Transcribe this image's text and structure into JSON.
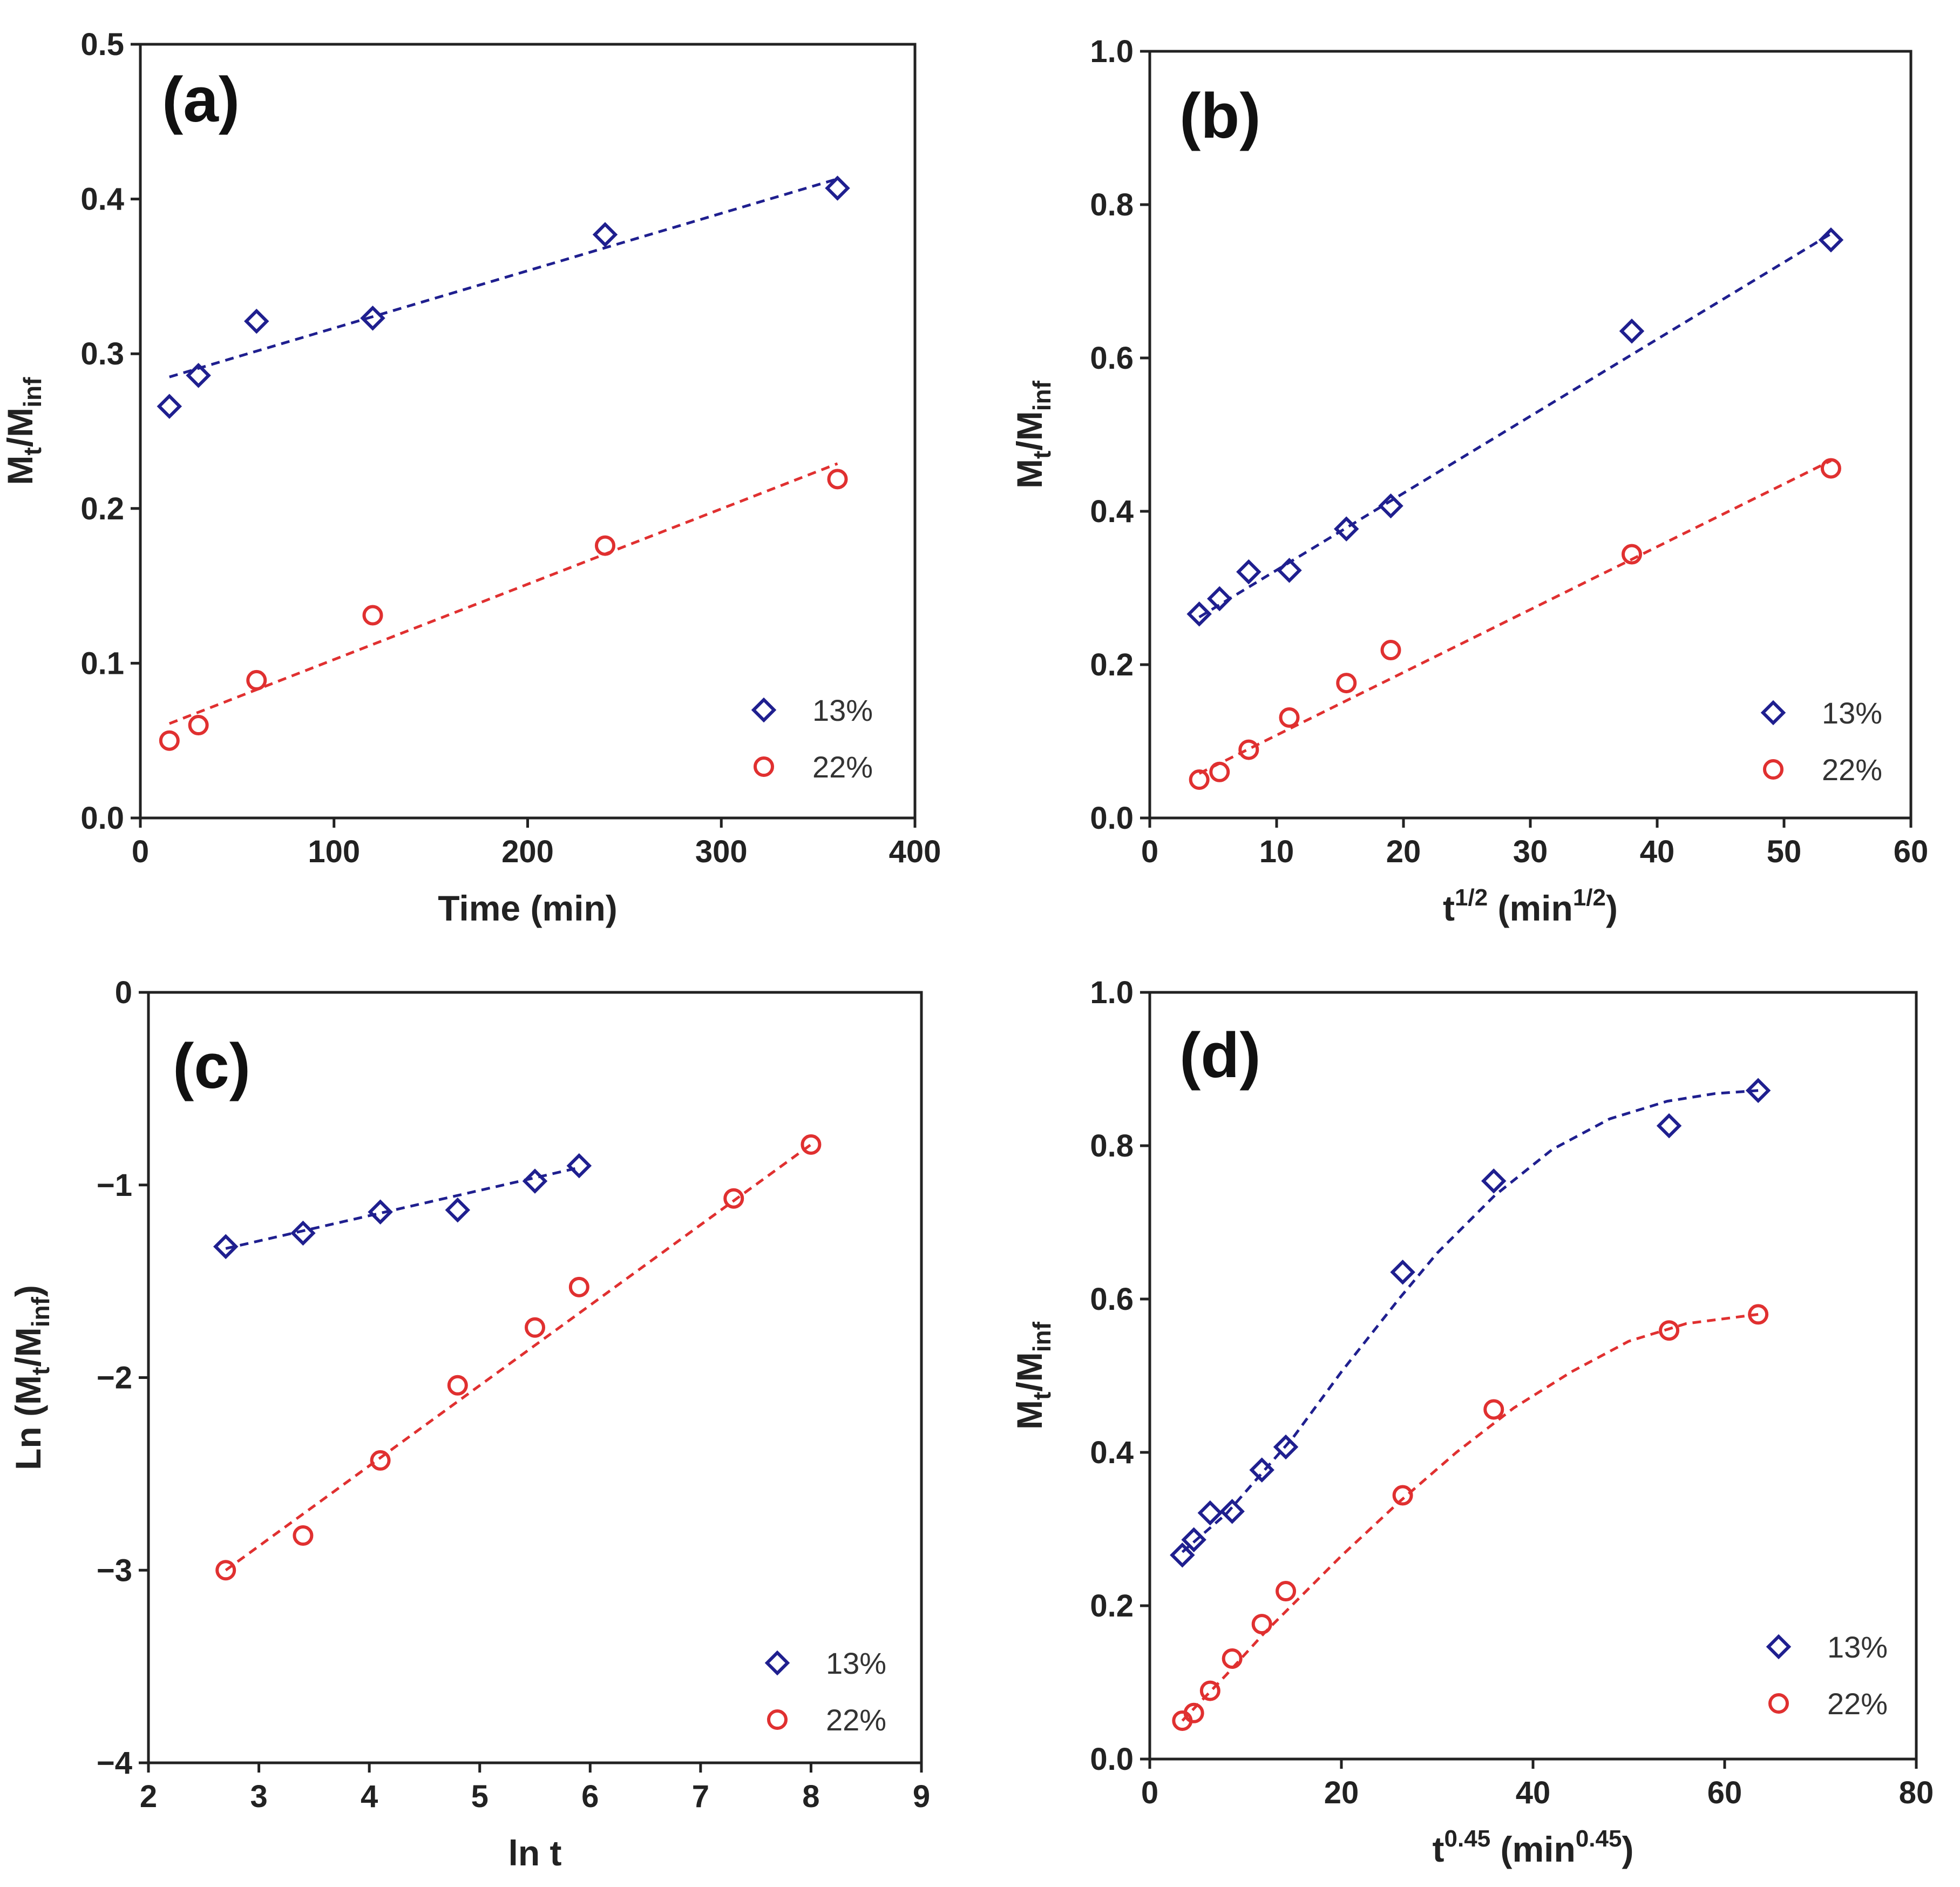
{
  "chart_data": [
    {
      "panel": "a",
      "type": "scatter",
      "tag": "(a)",
      "xlim": [
        0,
        400
      ],
      "ylim": [
        0,
        0.5
      ],
      "xticks": [
        0,
        100,
        200,
        300,
        400
      ],
      "yticks": [
        0.0,
        0.1,
        0.2,
        0.3,
        0.4,
        0.5
      ],
      "xtick_labels": [
        "0",
        "100",
        "200",
        "300",
        "400"
      ],
      "ytick_labels": [
        "0.0",
        "0.1",
        "0.2",
        "0.3",
        "0.4",
        "0.5"
      ],
      "xlabel": {
        "base": "Time (min)",
        "sup": "",
        "rest": ""
      },
      "ylabel": {
        "base": "M",
        "sub1": "t",
        "mid": "/M",
        "sub2": "inf",
        "prefix": "",
        "suffix": ""
      },
      "series": [
        {
          "name": "13%",
          "marker": "diamond",
          "color": "#1f1f8f",
          "x": [
            15,
            30,
            60,
            120,
            240,
            360
          ],
          "y": [
            0.266,
            0.286,
            0.321,
            0.323,
            0.377,
            0.407
          ],
          "fit": {
            "kind": "line",
            "x": [
              15,
              360
            ],
            "y": [
              0.285,
              0.413
            ]
          }
        },
        {
          "name": "22%",
          "marker": "circle",
          "color": "#e03030",
          "x": [
            15,
            30,
            60,
            120,
            240,
            360
          ],
          "y": [
            0.05,
            0.06,
            0.089,
            0.131,
            0.176,
            0.219
          ],
          "fit": {
            "kind": "line",
            "x": [
              15,
              360
            ],
            "y": [
              0.061,
              0.229
            ]
          }
        }
      ]
    },
    {
      "panel": "b",
      "type": "scatter",
      "tag": "(b)",
      "xlim": [
        0,
        60
      ],
      "ylim": [
        0,
        1.0
      ],
      "xticks": [
        0,
        10,
        20,
        30,
        40,
        50,
        60
      ],
      "yticks": [
        0.0,
        0.2,
        0.4,
        0.6,
        0.8,
        1.0
      ],
      "xtick_labels": [
        "0",
        "10",
        "20",
        "30",
        "40",
        "50",
        "60"
      ],
      "ytick_labels": [
        "0.0",
        "0.2",
        "0.4",
        "0.6",
        "0.8",
        "1.0"
      ],
      "xlabel": {
        "base": "t",
        "sup": "1/2",
        "rest": " (min",
        "sup2": "1/2",
        "end": ")"
      },
      "ylabel": {
        "base": "M",
        "sub1": "t",
        "mid": "/M",
        "sub2": "inf",
        "prefix": "",
        "suffix": ""
      },
      "series": [
        {
          "name": "13%",
          "marker": "diamond",
          "color": "#1f1f8f",
          "x": [
            3.9,
            5.5,
            7.8,
            11.0,
            15.5,
            19.0,
            38.0,
            53.7
          ],
          "y": [
            0.266,
            0.286,
            0.321,
            0.323,
            0.377,
            0.407,
            0.635,
            0.754
          ],
          "fit": {
            "kind": "line",
            "x": [
              3.9,
              53.7
            ],
            "y": [
              0.262,
              0.762
            ]
          }
        },
        {
          "name": "22%",
          "marker": "circle",
          "color": "#e03030",
          "x": [
            3.9,
            5.5,
            7.8,
            11.0,
            15.5,
            19.0,
            38.0,
            53.7
          ],
          "y": [
            0.05,
            0.06,
            0.089,
            0.131,
            0.176,
            0.219,
            0.344,
            0.456
          ],
          "fit": {
            "kind": "line",
            "x": [
              3.9,
              53.7
            ],
            "y": [
              0.058,
              0.466
            ]
          }
        }
      ]
    },
    {
      "panel": "c",
      "type": "scatter",
      "tag": "(c)",
      "xlim": [
        2,
        9
      ],
      "ylim": [
        -4,
        0
      ],
      "xticks": [
        2,
        3,
        4,
        5,
        6,
        7,
        8,
        9
      ],
      "yticks": [
        -4,
        -3,
        -2,
        -1,
        0
      ],
      "xtick_labels": [
        "2",
        "3",
        "4",
        "5",
        "6",
        "7",
        "8",
        "9"
      ],
      "ytick_labels": [
        "−4",
        "−3",
        "−2",
        "−1",
        "0"
      ],
      "xlabel": {
        "base": "ln t",
        "sup": "",
        "rest": ""
      },
      "ylabel": {
        "prefix": "Ln (",
        "base": "M",
        "sub1": "t",
        "mid": "/M",
        "sub2": "inf",
        "suffix": ")"
      },
      "series": [
        {
          "name": "13%",
          "marker": "diamond",
          "color": "#1f1f8f",
          "x": [
            2.7,
            3.4,
            4.1,
            4.8,
            5.5,
            5.9
          ],
          "y": [
            -1.32,
            -1.25,
            -1.14,
            -1.13,
            -0.98,
            -0.9
          ],
          "fit": {
            "kind": "line",
            "x": [
              2.7,
              5.9
            ],
            "y": [
              -1.33,
              -0.91
            ]
          }
        },
        {
          "name": "22%",
          "marker": "circle",
          "color": "#e03030",
          "x": [
            2.7,
            3.4,
            4.1,
            4.8,
            5.5,
            5.9,
            7.3,
            8.0
          ],
          "y": [
            -3.0,
            -2.82,
            -2.43,
            -2.04,
            -1.74,
            -1.53,
            -1.07,
            -0.79
          ],
          "fit": {
            "kind": "line",
            "x": [
              2.7,
              8.0
            ],
            "y": [
              -3.0,
              -0.79
            ]
          }
        }
      ]
    },
    {
      "panel": "d",
      "type": "scatter",
      "tag": "(d)",
      "xlim": [
        0,
        80
      ],
      "ylim": [
        0,
        1.0
      ],
      "xticks": [
        0,
        20,
        40,
        60,
        80
      ],
      "yticks": [
        0.0,
        0.2,
        0.4,
        0.6,
        0.8,
        1.0
      ],
      "xtick_labels": [
        "0",
        "20",
        "40",
        "60",
        "80"
      ],
      "ytick_labels": [
        "0.0",
        "0.2",
        "0.4",
        "0.6",
        "0.8",
        "1.0"
      ],
      "xlabel": {
        "base": "t",
        "sup": "0.45",
        "rest": " (min",
        "sup2": "0.45",
        "end": ")"
      },
      "ylabel": {
        "base": "M",
        "sub1": "t",
        "mid": "/M",
        "sub2": "inf",
        "prefix": "",
        "suffix": ""
      },
      "series": [
        {
          "name": "13%",
          "marker": "diamond",
          "color": "#1f1f8f",
          "x": [
            3.4,
            4.6,
            6.3,
            8.6,
            11.7,
            14.2,
            26.4,
            35.9,
            54.2,
            63.5
          ],
          "y": [
            0.266,
            0.286,
            0.321,
            0.323,
            0.377,
            0.407,
            0.635,
            0.754,
            0.826,
            0.872
          ],
          "fit": {
            "kind": "curve",
            "x": [
              3.4,
              8,
              15,
              20,
              26,
              30,
              36,
              42,
              48,
              54,
              59,
              63.5
            ],
            "y": [
              0.27,
              0.32,
              0.42,
              0.505,
              0.6,
              0.66,
              0.735,
              0.795,
              0.835,
              0.858,
              0.868,
              0.872
            ]
          }
        },
        {
          "name": "22%",
          "marker": "circle",
          "color": "#e03030",
          "x": [
            3.4,
            4.6,
            6.3,
            8.6,
            11.7,
            14.2,
            26.4,
            35.9,
            54.2,
            63.5
          ],
          "y": [
            0.05,
            0.06,
            0.089,
            0.131,
            0.176,
            0.219,
            0.344,
            0.456,
            0.559,
            0.58
          ],
          "fit": {
            "kind": "curve",
            "x": [
              3.4,
              8,
              12,
              16,
              20,
              26,
              32,
              38,
              44,
              50,
              56,
              63.5
            ],
            "y": [
              0.05,
              0.11,
              0.165,
              0.215,
              0.265,
              0.335,
              0.4,
              0.458,
              0.505,
              0.545,
              0.568,
              0.58
            ]
          }
        }
      ]
    }
  ]
}
